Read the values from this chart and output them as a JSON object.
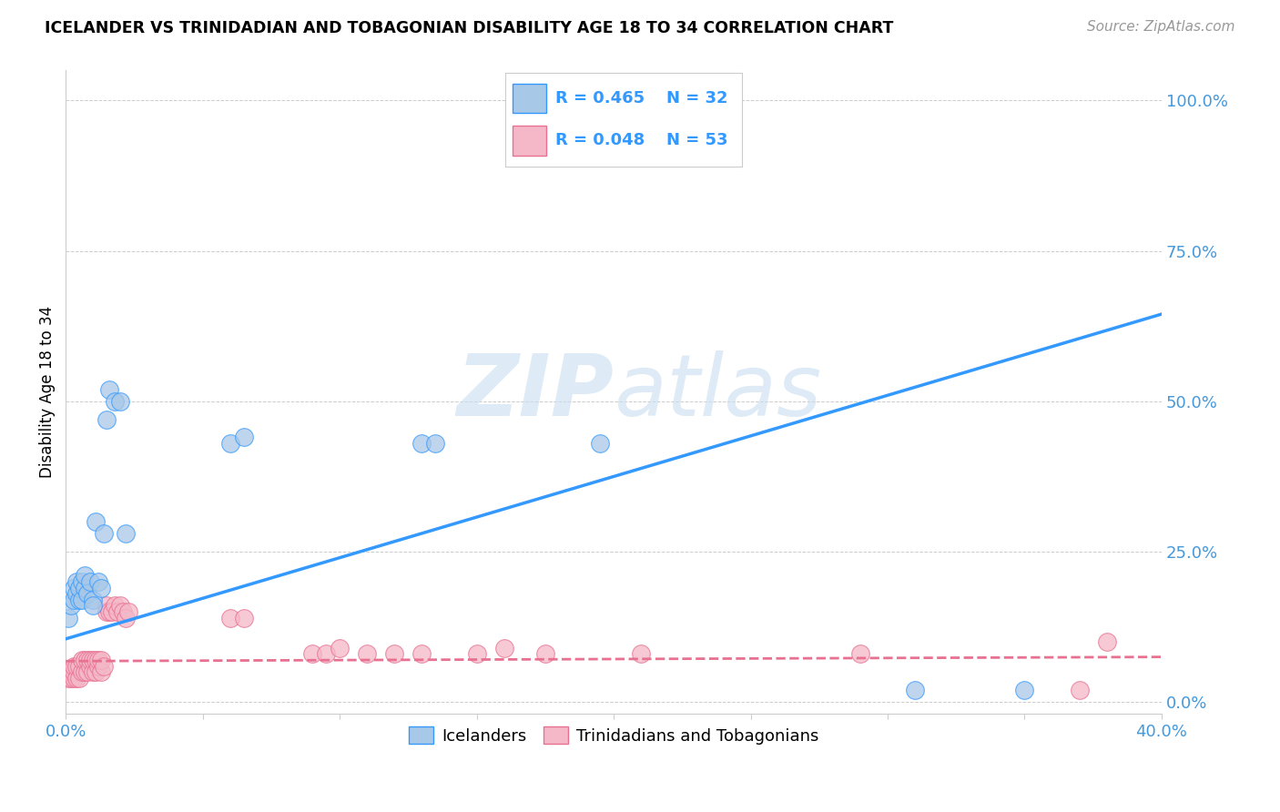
{
  "title": "ICELANDER VS TRINIDADIAN AND TOBAGONIAN DISABILITY AGE 18 TO 34 CORRELATION CHART",
  "source": "Source: ZipAtlas.com",
  "ylabel": "Disability Age 18 to 34",
  "xlim": [
    0.0,
    0.4
  ],
  "ylim": [
    -0.02,
    1.05
  ],
  "ytick_vals": [
    0.0,
    0.25,
    0.5,
    0.75,
    1.0
  ],
  "ytick_labels": [
    "0.0%",
    "25.0%",
    "50.0%",
    "75.0%",
    "100.0%"
  ],
  "xtick_vals": [
    0.0,
    0.05,
    0.1,
    0.15,
    0.2,
    0.25,
    0.3,
    0.35,
    0.4
  ],
  "xtick_labels": [
    "0.0%",
    "",
    "",
    "",
    "",
    "",
    "",
    "",
    "40.0%"
  ],
  "legend_r1": "R = 0.465",
  "legend_n1": "N = 32",
  "legend_r2": "R = 0.048",
  "legend_n2": "N = 53",
  "blue_scatter_color": "#a8c8e8",
  "blue_line_color": "#3399ff",
  "pink_scatter_color": "#f4b8c8",
  "pink_line_color": "#e87090",
  "tick_color": "#4499dd",
  "watermark_color": "#c8dff0",
  "icelanders_x": [
    0.001,
    0.002,
    0.003,
    0.003,
    0.004,
    0.004,
    0.005,
    0.005,
    0.006,
    0.006,
    0.007,
    0.007,
    0.008,
    0.009,
    0.01,
    0.01,
    0.011,
    0.012,
    0.013,
    0.014,
    0.015,
    0.016,
    0.018,
    0.02,
    0.022,
    0.06,
    0.065,
    0.13,
    0.135,
    0.195,
    0.31,
    0.35
  ],
  "icelanders_y": [
    0.14,
    0.16,
    0.17,
    0.19,
    0.18,
    0.2,
    0.17,
    0.19,
    0.17,
    0.2,
    0.19,
    0.21,
    0.18,
    0.2,
    0.17,
    0.16,
    0.3,
    0.2,
    0.19,
    0.28,
    0.47,
    0.52,
    0.5,
    0.5,
    0.28,
    0.43,
    0.44,
    0.43,
    0.43,
    0.43,
    0.02,
    0.02
  ],
  "trinidadians_x": [
    0.001,
    0.001,
    0.002,
    0.002,
    0.003,
    0.003,
    0.003,
    0.004,
    0.004,
    0.005,
    0.005,
    0.006,
    0.006,
    0.007,
    0.007,
    0.008,
    0.008,
    0.009,
    0.009,
    0.01,
    0.01,
    0.011,
    0.011,
    0.012,
    0.012,
    0.013,
    0.013,
    0.014,
    0.015,
    0.015,
    0.016,
    0.017,
    0.018,
    0.019,
    0.02,
    0.021,
    0.022,
    0.023,
    0.06,
    0.065,
    0.09,
    0.095,
    0.1,
    0.11,
    0.12,
    0.13,
    0.15,
    0.16,
    0.175,
    0.21,
    0.29,
    0.37,
    0.38
  ],
  "trinidadians_y": [
    0.04,
    0.05,
    0.04,
    0.05,
    0.04,
    0.05,
    0.06,
    0.04,
    0.06,
    0.04,
    0.06,
    0.05,
    0.07,
    0.05,
    0.07,
    0.05,
    0.07,
    0.06,
    0.07,
    0.05,
    0.07,
    0.05,
    0.07,
    0.06,
    0.07,
    0.05,
    0.07,
    0.06,
    0.15,
    0.16,
    0.15,
    0.15,
    0.16,
    0.15,
    0.16,
    0.15,
    0.14,
    0.15,
    0.14,
    0.14,
    0.08,
    0.08,
    0.09,
    0.08,
    0.08,
    0.08,
    0.08,
    0.09,
    0.08,
    0.08,
    0.08,
    0.02,
    0.1
  ],
  "blue_line_x0": 0.0,
  "blue_line_y0": 0.105,
  "blue_line_x1": 0.4,
  "blue_line_y1": 0.645,
  "pink_line_x0": 0.0,
  "pink_line_y0": 0.068,
  "pink_line_x1": 0.4,
  "pink_line_y1": 0.075
}
